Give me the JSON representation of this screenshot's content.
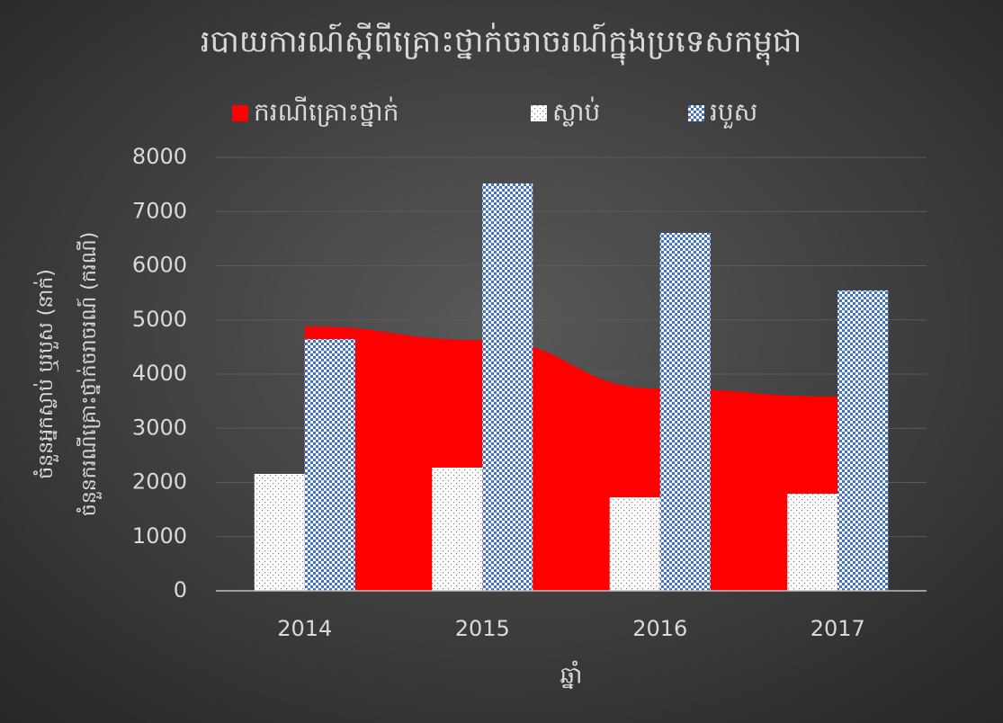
{
  "chart_data": {
    "type": "bar_area",
    "title": "របាយការណ៍ស្តីពីគ្រោះថ្នាក់ចរាចរណ៍ក្នុងប្រទេសកម្ពុជា",
    "xlabel": "ឆ្នាំ",
    "ylabel": [
      "ចំនួនអ្នកស្លាប់ ឬរបួស (នាក់)",
      "ចំនួនករណីគ្រោះថ្នាក់ចរាចរណ៍ (ករណី)"
    ],
    "categories": [
      "2014",
      "2015",
      "2016",
      "2017"
    ],
    "series": [
      {
        "name": "ករណីគ្រោះថ្នាក់",
        "color": "#ff0000",
        "kind": "area",
        "values": [
          4880,
          4630,
          3730,
          3585
        ]
      },
      {
        "name": "ស្លាប់",
        "color": "#ffffff",
        "kind": "bar",
        "values": [
          2158,
          2274,
          1726,
          1793
        ]
      },
      {
        "name": "របួស",
        "color": "#4472c4",
        "kind": "bar",
        "values": [
          4647,
          7519,
          6606,
          5544
        ]
      }
    ],
    "ylim": [
      0,
      8000
    ],
    "yticks": [
      0,
      1000,
      2000,
      3000,
      4000,
      5000,
      6000,
      7000,
      8000
    ],
    "grid": true,
    "legend": "top"
  }
}
